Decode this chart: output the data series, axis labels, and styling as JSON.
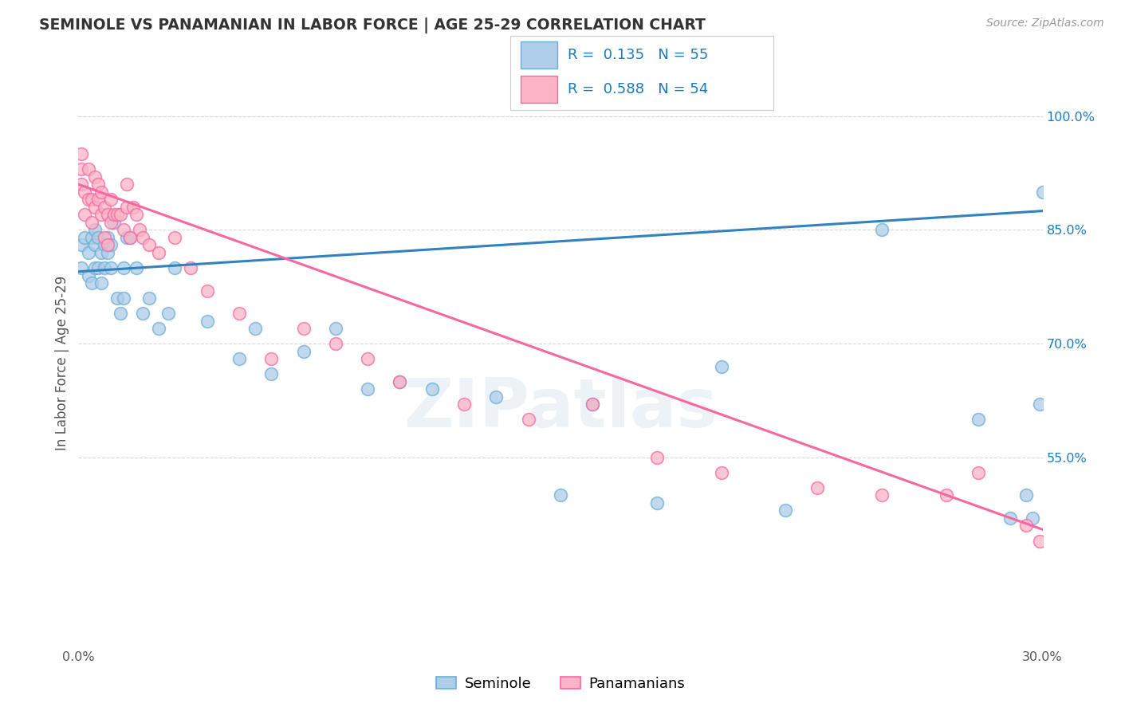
{
  "title": "SEMINOLE VS PANAMANIAN IN LABOR FORCE | AGE 25-29 CORRELATION CHART",
  "source": "Source: ZipAtlas.com",
  "ylabel": "In Labor Force | Age 25-29",
  "xlim": [
    0.0,
    0.3
  ],
  "ylim": [
    0.3,
    1.05
  ],
  "xticks": [
    0.0,
    0.05,
    0.1,
    0.15,
    0.2,
    0.25,
    0.3
  ],
  "xtick_labels": [
    "0.0%",
    "",
    "",
    "",
    "",
    "",
    "30.0%"
  ],
  "yticks": [
    0.55,
    0.7,
    0.85,
    1.0
  ],
  "ytick_labels": [
    "55.0%",
    "70.0%",
    "85.0%",
    "100.0%"
  ],
  "legend_r_blue": "R =  0.135",
  "legend_n_blue": "N = 55",
  "legend_r_pink": "R =  0.588",
  "legend_n_pink": "N = 54",
  "seminole_label": "Seminole",
  "panamanian_label": "Panamanians",
  "blue_face": "#aecde8",
  "blue_edge": "#6baed6",
  "pink_face": "#fbb4c6",
  "pink_edge": "#f768a1",
  "blue_line": "#3182bd",
  "pink_line": "#f768a1",
  "seminole_x": [
    0.001,
    0.001,
    0.002,
    0.003,
    0.003,
    0.004,
    0.004,
    0.005,
    0.005,
    0.005,
    0.006,
    0.006,
    0.007,
    0.007,
    0.008,
    0.008,
    0.009,
    0.009,
    0.01,
    0.01,
    0.011,
    0.012,
    0.013,
    0.014,
    0.014,
    0.015,
    0.016,
    0.018,
    0.02,
    0.022,
    0.025,
    0.028,
    0.03,
    0.04,
    0.05,
    0.055,
    0.06,
    0.07,
    0.08,
    0.09,
    0.1,
    0.11,
    0.13,
    0.15,
    0.16,
    0.18,
    0.2,
    0.22,
    0.25,
    0.28,
    0.29,
    0.295,
    0.297,
    0.299,
    0.3
  ],
  "seminole_y": [
    0.83,
    0.8,
    0.84,
    0.82,
    0.79,
    0.84,
    0.78,
    0.85,
    0.83,
    0.8,
    0.84,
    0.8,
    0.82,
    0.78,
    0.83,
    0.8,
    0.84,
    0.82,
    0.83,
    0.8,
    0.86,
    0.76,
    0.74,
    0.76,
    0.8,
    0.84,
    0.84,
    0.8,
    0.74,
    0.76,
    0.72,
    0.74,
    0.8,
    0.73,
    0.68,
    0.72,
    0.66,
    0.69,
    0.72,
    0.64,
    0.65,
    0.64,
    0.63,
    0.5,
    0.62,
    0.49,
    0.67,
    0.48,
    0.85,
    0.6,
    0.47,
    0.5,
    0.47,
    0.62,
    0.9
  ],
  "panamanian_x": [
    0.001,
    0.001,
    0.001,
    0.002,
    0.002,
    0.003,
    0.003,
    0.004,
    0.004,
    0.005,
    0.005,
    0.006,
    0.006,
    0.007,
    0.007,
    0.008,
    0.008,
    0.009,
    0.009,
    0.01,
    0.01,
    0.011,
    0.012,
    0.013,
    0.014,
    0.015,
    0.015,
    0.016,
    0.017,
    0.018,
    0.019,
    0.02,
    0.022,
    0.025,
    0.03,
    0.035,
    0.04,
    0.05,
    0.06,
    0.07,
    0.08,
    0.09,
    0.1,
    0.12,
    0.14,
    0.16,
    0.18,
    0.2,
    0.23,
    0.25,
    0.27,
    0.28,
    0.295,
    0.299
  ],
  "panamanian_y": [
    0.95,
    0.93,
    0.91,
    0.9,
    0.87,
    0.93,
    0.89,
    0.89,
    0.86,
    0.92,
    0.88,
    0.91,
    0.89,
    0.9,
    0.87,
    0.88,
    0.84,
    0.87,
    0.83,
    0.89,
    0.86,
    0.87,
    0.87,
    0.87,
    0.85,
    0.91,
    0.88,
    0.84,
    0.88,
    0.87,
    0.85,
    0.84,
    0.83,
    0.82,
    0.84,
    0.8,
    0.77,
    0.74,
    0.68,
    0.72,
    0.7,
    0.68,
    0.65,
    0.62,
    0.6,
    0.62,
    0.55,
    0.53,
    0.51,
    0.5,
    0.5,
    0.53,
    0.46,
    0.44
  ],
  "blue_trend_x": [
    0.0,
    0.3
  ],
  "blue_trend_y": [
    0.795,
    0.875
  ],
  "pink_trend_x": [
    0.0,
    0.3
  ],
  "pink_trend_y": [
    0.91,
    0.455
  ],
  "watermark_text": "ZIPatlas",
  "bg_color": "#ffffff",
  "grid_color": "#d8d8d8",
  "title_color": "#333333",
  "label_color": "#555555",
  "tick_y_color": "#1a7abf",
  "tick_x_color": "#555555",
  "legend_text_color": "#1a7abf",
  "legend_box_edge": "#cccccc"
}
